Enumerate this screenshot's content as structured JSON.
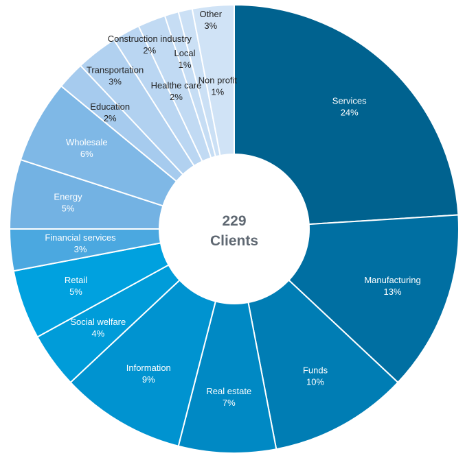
{
  "chart_data": {
    "type": "donut",
    "center_text": {
      "line1": "229",
      "line2": "Clients"
    },
    "slices": [
      {
        "label": "Services",
        "value_label": "24%",
        "value": 24,
        "color": "#00628f"
      },
      {
        "label": "Manufacturing",
        "value_label": "13%",
        "value": 13,
        "color": "#006fa2"
      },
      {
        "label": "Funds",
        "value_label": "10%",
        "value": 10,
        "color": "#007db4"
      },
      {
        "label": "Real estate",
        "value_label": "7%",
        "value": 7,
        "color": "#0089c4"
      },
      {
        "label": "Information",
        "value_label": "9%",
        "value": 9,
        "color": "#0093d0"
      },
      {
        "label": "Social welfare",
        "value_label": "4%",
        "value": 4,
        "color": "#009cd9"
      },
      {
        "label": "Retail",
        "value_label": "5%",
        "value": 5,
        "color": "#00a1df"
      },
      {
        "label": "Financial services",
        "value_label": "3%",
        "value": 3,
        "color": "#4ba8e0"
      },
      {
        "label": "Energy",
        "value_label": "5%",
        "value": 5,
        "color": "#73b2e3"
      },
      {
        "label": "Wholesale",
        "value_label": "6%",
        "value": 6,
        "color": "#7fb8e6"
      },
      {
        "label": "Education",
        "value_label": "2%",
        "value": 2,
        "color": "#a6cbee"
      },
      {
        "label": "Transportation",
        "value_label": "3%",
        "value": 3,
        "color": "#b1d1f0"
      },
      {
        "label": "Healthe care",
        "value_label": "2%",
        "value": 2,
        "color": "#bad6f2"
      },
      {
        "label": "Construction industry",
        "value_label": "2%",
        "value": 2,
        "color": "#c1daf3"
      },
      {
        "label": "Local",
        "value_label": "1%",
        "value": 1,
        "color": "#c6ddf4"
      },
      {
        "label": "Non profit",
        "value_label": "1%",
        "value": 1,
        "color": "#cbe0f5"
      },
      {
        "label": "Other",
        "value_label": "3%",
        "value": 3,
        "color": "#d0e3f6"
      }
    ],
    "legend": "none"
  }
}
